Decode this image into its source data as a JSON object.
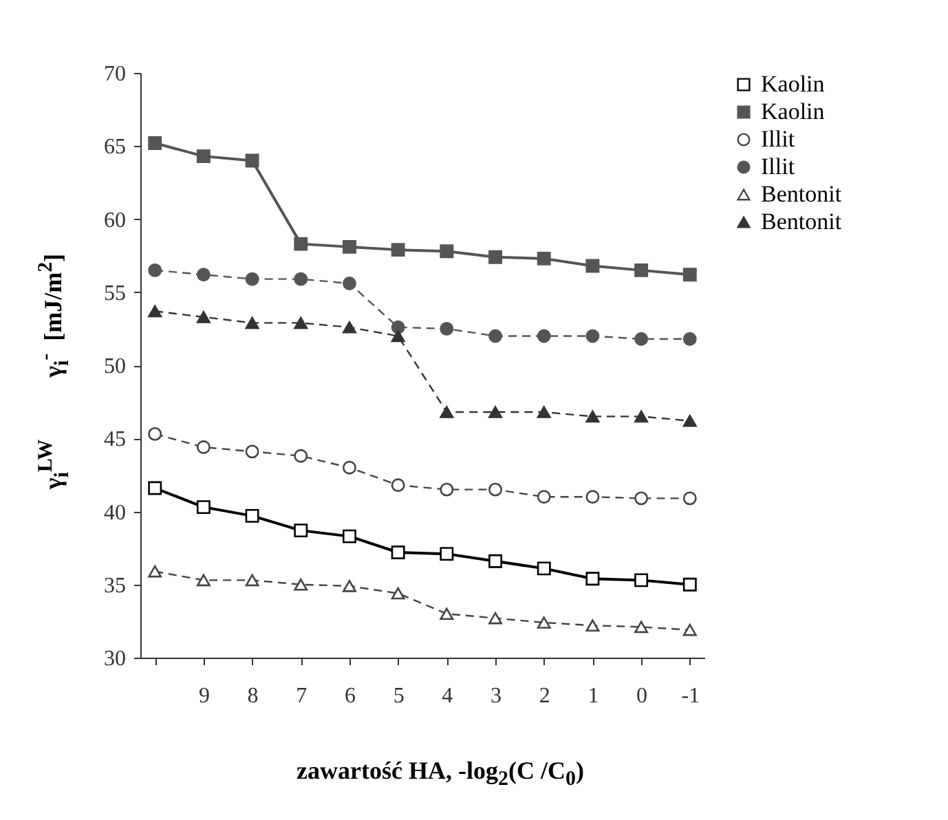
{
  "chart_data": {
    "type": "line",
    "xlabel": "zawartość HA, -log$_{2}$(C /C$_{0}$)",
    "ylabel": "γ$_{i}$$^{LW}$          γ$_{i}$$^{-}$  [mJ/m$^{2}$]",
    "categories": [
      null,
      "9",
      "8",
      "7",
      "6",
      "5",
      "4",
      "3",
      "2",
      "1",
      "0",
      "-1"
    ],
    "ylim": [
      30,
      70
    ],
    "yticks": [
      30,
      35,
      40,
      45,
      50,
      55,
      60,
      65,
      70
    ],
    "legend": "right",
    "series": [
      {
        "name": "Kaolin",
        "color": "#000000",
        "marker": "square",
        "line_style": "solid",
        "values": [
          41.6,
          40.3,
          39.7,
          38.7,
          38.3,
          37.2,
          37.1,
          36.6,
          36.1,
          35.4,
          35.3,
          35.0
        ]
      },
      {
        "name": "Kaolin",
        "color": "#555555",
        "marker": "square",
        "line_style": "solid",
        "values": [
          65.2,
          64.3,
          64.0,
          58.3,
          58.1,
          57.9,
          57.8,
          57.4,
          57.3,
          56.8,
          56.5,
          56.2
        ]
      },
      {
        "name": "Illit",
        "color": "#444444",
        "marker": "circle",
        "line_style": "dashed",
        "values": [
          45.3,
          44.4,
          44.1,
          43.8,
          43.0,
          41.8,
          41.5,
          41.5,
          41.0,
          41.0,
          40.9,
          40.9
        ]
      },
      {
        "name": "Illit",
        "color": "#555555",
        "marker": "circle",
        "line_style": "dashed",
        "values": [
          56.5,
          56.2,
          55.9,
          55.9,
          55.6,
          52.6,
          52.5,
          52.0,
          52.0,
          52.0,
          51.8,
          51.8
        ]
      },
      {
        "name": "Bentonit",
        "color": "#444444",
        "marker": "triangle",
        "line_style": "dashed",
        "values": [
          35.9,
          35.3,
          35.3,
          35.0,
          34.9,
          34.4,
          33.0,
          32.7,
          32.4,
          32.2,
          32.1,
          31.9
        ]
      },
      {
        "name": "Bentonit",
        "color": "#333333",
        "marker": "triangle",
        "line_style": "dashed",
        "values": [
          53.7,
          53.3,
          52.9,
          52.9,
          52.6,
          52.0,
          46.8,
          46.8,
          46.8,
          46.5,
          46.5,
          46.2
        ]
      }
    ]
  }
}
